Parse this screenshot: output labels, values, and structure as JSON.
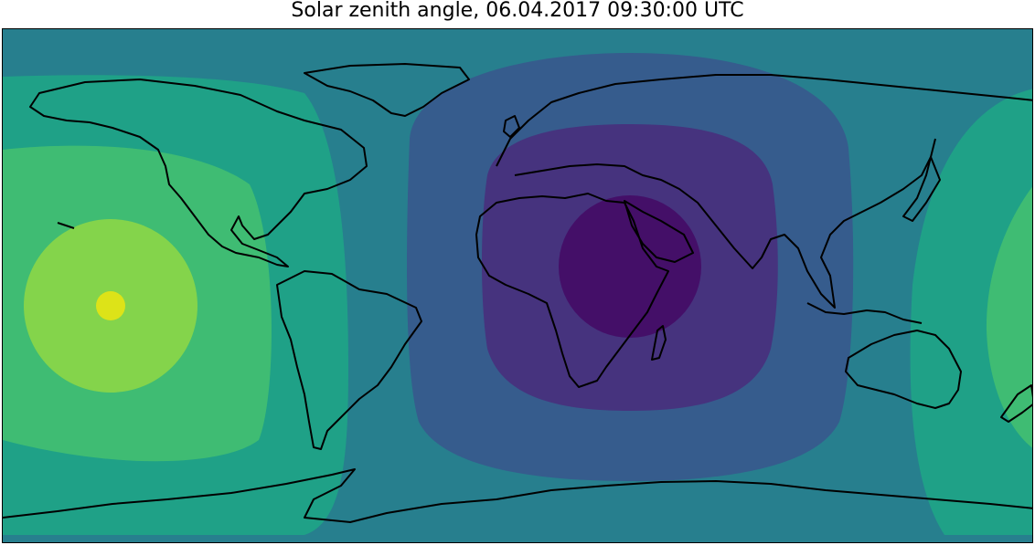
{
  "title": "Solar zenith angle, 06.04.2017 09:30:00 UTC",
  "map": {
    "projection": "plate-carree",
    "colormap": "viridis",
    "background_color": "#21918c",
    "zones": [
      {
        "name": "zone-1",
        "color": "#440f68",
        "level": 1
      },
      {
        "name": "zone-2",
        "color": "#46337e",
        "level": 2
      },
      {
        "name": "zone-3",
        "color": "#365c8d",
        "level": 3
      },
      {
        "name": "zone-4",
        "color": "#277f8e",
        "level": 4
      },
      {
        "name": "zone-5",
        "color": "#1fa187",
        "level": 5
      },
      {
        "name": "zone-6",
        "color": "#4ac16d",
        "level": 6
      },
      {
        "name": "zone-7",
        "color": "#a0da39",
        "level": 7
      },
      {
        "name": "zone-8",
        "color": "#dde318",
        "level": 8
      }
    ],
    "subsolar_point": {
      "lon": 40,
      "lat": 6
    },
    "antisolar_point": {
      "lon": -140,
      "lat": -6
    },
    "coastline_color": "#000000"
  }
}
